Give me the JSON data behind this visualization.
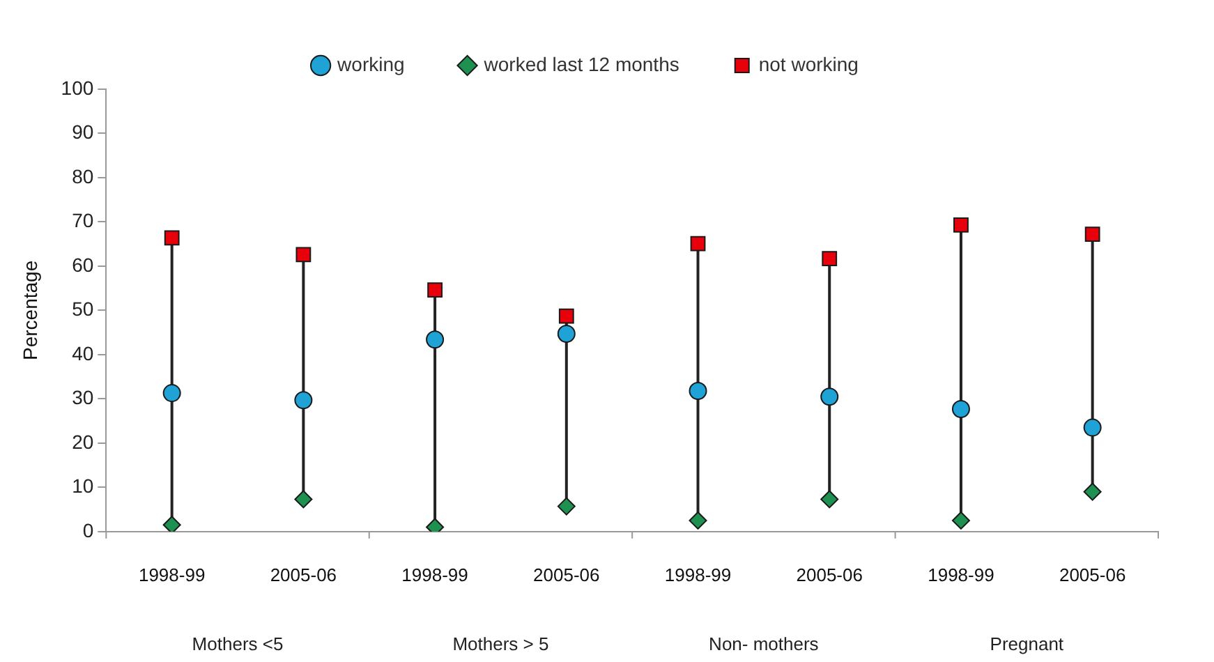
{
  "chart_data": {
    "type": "scatter",
    "ylabel": "Percentage",
    "categories": [
      "1998-99",
      "2005-06",
      "1998-99",
      "2005-06",
      "1998-99",
      "2005-06",
      "1998-99",
      "2005-06"
    ],
    "annotations": [
      "Mothers <5",
      "Mothers > 5",
      "Non- mothers",
      "Pregnant"
    ],
    "series": [
      {
        "name": "working",
        "color": "#1fa3d6",
        "marker": "circle",
        "values": [
          31.3,
          29.7,
          43.4,
          44.7,
          31.8,
          30.5,
          27.7,
          23.5
        ]
      },
      {
        "name": "worked last 12 months",
        "color": "#1e9050",
        "marker": "diamond",
        "values": [
          1.5,
          7.3,
          1,
          5.7,
          2.5,
          7.3,
          2.5,
          9
        ]
      },
      {
        "name": "not working",
        "color": "#e8000b",
        "marker": "square",
        "values": [
          66.4,
          62.6,
          54.6,
          48.7,
          65.1,
          61.7,
          69.3,
          67.2
        ]
      }
    ],
    "ylim": [
      0,
      100
    ],
    "yticks": [
      0,
      10,
      20,
      30,
      40,
      50,
      60,
      70,
      80,
      90,
      100
    ],
    "grid": false,
    "legend": "top"
  }
}
